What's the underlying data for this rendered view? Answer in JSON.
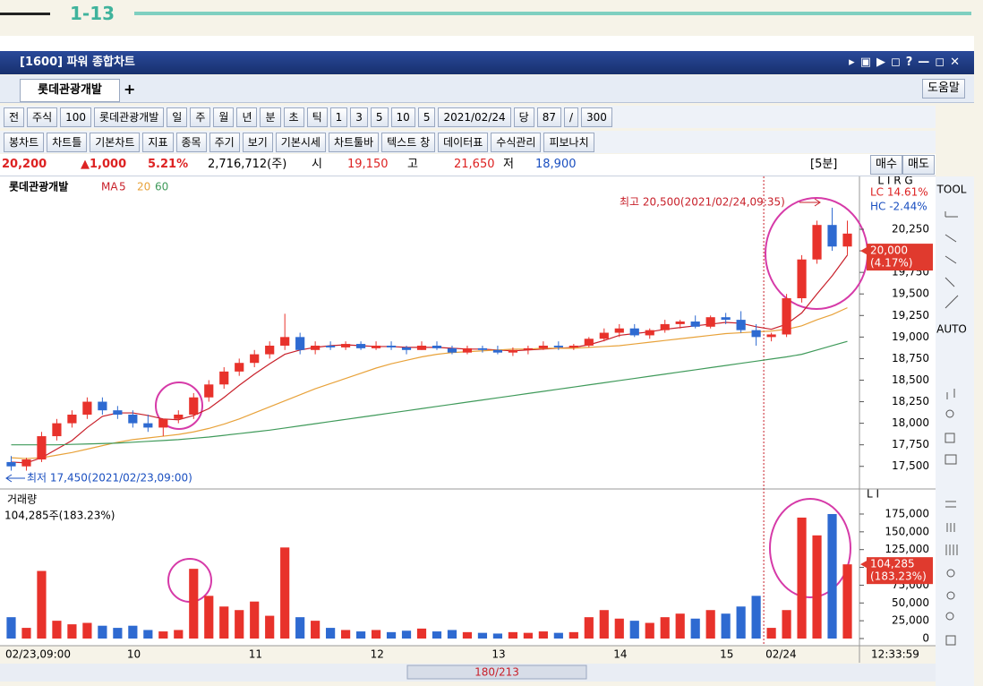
{
  "header": {
    "section": "1-13"
  },
  "window": {
    "title": "[1600] 파워 종합차트",
    "tab": "롯데관광개발",
    "help": "도움말"
  },
  "toolbar": {
    "row1": [
      "전",
      "주식",
      "100",
      "롯데관광개발",
      "일",
      "주",
      "월",
      "년",
      "분",
      "초",
      "틱",
      "1",
      "3",
      "5",
      "10",
      "5",
      "2021/02/24",
      "당",
      "87",
      "/",
      "300"
    ],
    "row2": [
      "봉차트",
      "차트틀",
      "기본차트",
      "지표",
      "종목",
      "주기",
      "보기",
      "기본시세",
      "차트툴바",
      "텍스트 창",
      "데이터표",
      "수식관리",
      "피보나치"
    ]
  },
  "quote": {
    "price": "20,200",
    "change": "▲1,000",
    "rate": "5.21%",
    "volume": "2,716,712(주)",
    "open_label": "시",
    "open": "19,150",
    "high_label": "고",
    "high": "21,650",
    "low_label": "저",
    "low": "18,900",
    "period": "[5분]",
    "buy": "매수",
    "sell": "매도"
  },
  "chart_data": [
    {
      "type": "candlestick",
      "title": "롯데관광개발",
      "ma_label": "MA",
      "panel_tag": "L I R G",
      "up_color": "#e8322b",
      "down_color": "#2e6ad1",
      "open": [
        17550,
        17500,
        17580,
        17850,
        18000,
        18100,
        18250,
        18150,
        18100,
        18000,
        17950,
        18050,
        18100,
        18300,
        18450,
        18600,
        18700,
        18800,
        18900,
        19000,
        18850,
        18900,
        18880,
        18920,
        18870,
        18900,
        18880,
        18850,
        18900,
        18870,
        18820,
        18870,
        18850,
        18820,
        18850,
        18870,
        18900,
        18880,
        18900,
        18980,
        19050,
        19100,
        19020,
        19080,
        19150,
        19180,
        19120,
        19230,
        19200,
        19080,
        19000,
        19030,
        19450,
        19900,
        20300,
        20050
      ],
      "high": [
        17620,
        17600,
        17900,
        18050,
        18150,
        18300,
        18300,
        18200,
        18150,
        18100,
        18050,
        18150,
        18350,
        18500,
        18650,
        18750,
        18850,
        18950,
        19270,
        19050,
        18950,
        18950,
        18950,
        18950,
        18950,
        18950,
        18900,
        18950,
        18950,
        18900,
        18900,
        18900,
        18900,
        18880,
        18900,
        18950,
        18950,
        18920,
        19000,
        19100,
        19150,
        19150,
        19100,
        19200,
        19200,
        19250,
        19250,
        19280,
        19300,
        19150,
        19050,
        19500,
        19950,
        20350,
        20500,
        20350
      ],
      "low": [
        17450,
        17450,
        17550,
        17800,
        17950,
        18050,
        18100,
        18050,
        17950,
        17900,
        17850,
        18000,
        18050,
        18250,
        18400,
        18550,
        18650,
        18750,
        18850,
        18800,
        18800,
        18850,
        18850,
        18850,
        18850,
        18850,
        18800,
        18850,
        18850,
        18800,
        18800,
        18820,
        18800,
        18780,
        18800,
        18850,
        18850,
        18850,
        18880,
        18950,
        19000,
        19000,
        18980,
        19050,
        19100,
        19100,
        19100,
        19150,
        19050,
        18900,
        18950,
        19000,
        19400,
        19850,
        20000,
        19950
      ],
      "close": [
        17500,
        17580,
        17850,
        18000,
        18100,
        18250,
        18150,
        18100,
        18000,
        17950,
        18050,
        18100,
        18300,
        18450,
        18600,
        18700,
        18800,
        18900,
        19000,
        18850,
        18900,
        18880,
        18920,
        18870,
        18900,
        18880,
        18850,
        18900,
        18870,
        18820,
        18870,
        18850,
        18820,
        18850,
        18870,
        18900,
        18880,
        18900,
        18980,
        19050,
        19100,
        19020,
        19080,
        19150,
        19180,
        19120,
        19230,
        19200,
        19080,
        19000,
        19030,
        19450,
        19900,
        20300,
        20050,
        20200
      ],
      "series": [
        {
          "name": "5",
          "color": "#c8202a",
          "values": [
            17550,
            17540,
            17600,
            17700,
            17800,
            17950,
            18080,
            18120,
            18120,
            18090,
            18050,
            18040,
            18090,
            18170,
            18300,
            18440,
            18570,
            18690,
            18800,
            18850,
            18880,
            18900,
            18910,
            18900,
            18890,
            18890,
            18880,
            18880,
            18880,
            18870,
            18860,
            18860,
            18850,
            18840,
            18850,
            18860,
            18870,
            18880,
            18910,
            18960,
            19020,
            19040,
            19060,
            19090,
            19110,
            19130,
            19150,
            19170,
            19160,
            19120,
            19090,
            19150,
            19280,
            19500,
            19710,
            19950
          ]
        },
        {
          "name": "20",
          "color": "#e8a23a",
          "values": [
            17600,
            17590,
            17600,
            17630,
            17660,
            17700,
            17740,
            17780,
            17810,
            17830,
            17850,
            17870,
            17900,
            17940,
            17990,
            18050,
            18120,
            18190,
            18260,
            18330,
            18400,
            18460,
            18520,
            18580,
            18640,
            18690,
            18730,
            18770,
            18800,
            18820,
            18830,
            18840,
            18850,
            18860,
            18860,
            18870,
            18870,
            18870,
            18880,
            18890,
            18900,
            18920,
            18940,
            18960,
            18980,
            19000,
            19020,
            19040,
            19050,
            19060,
            19070,
            19090,
            19130,
            19200,
            19260,
            19340
          ]
        },
        {
          "name": "60",
          "color": "#3f9a5a",
          "values": [
            17750,
            17750,
            17750,
            17750,
            17755,
            17760,
            17765,
            17770,
            17780,
            17790,
            17800,
            17810,
            17825,
            17840,
            17860,
            17880,
            17900,
            17920,
            17945,
            17970,
            17995,
            18020,
            18045,
            18070,
            18095,
            18120,
            18145,
            18170,
            18195,
            18220,
            18245,
            18270,
            18295,
            18320,
            18345,
            18370,
            18395,
            18420,
            18445,
            18470,
            18495,
            18520,
            18545,
            18570,
            18595,
            18620,
            18645,
            18670,
            18695,
            18720,
            18745,
            18770,
            18800,
            18850,
            18900,
            18950
          ]
        }
      ],
      "ylim": [
        17300,
        20780
      ],
      "yticks": [
        {
          "value": 17500,
          "label": "17,500"
        },
        {
          "value": 17750,
          "label": "17,750"
        },
        {
          "value": 18000,
          "label": "18,000"
        },
        {
          "value": 18250,
          "label": "18,250"
        },
        {
          "value": 18500,
          "label": "18,500"
        },
        {
          "value": 18750,
          "label": "18,750"
        },
        {
          "value": 19000,
          "label": "19,000"
        },
        {
          "value": 19250,
          "label": "19,250"
        },
        {
          "value": 19500,
          "label": "19,500"
        },
        {
          "value": 19750,
          "label": "19,750"
        },
        {
          "value": 20000,
          "label": "20,000"
        },
        {
          "value": 20250,
          "label": "20,250"
        }
      ],
      "high_note": "최고 20,500(2021/02/24,09:35)",
      "low_note": "최저 17,450(2021/02/23,09:00)",
      "lc": "LC 14.61%",
      "hc": "HC -2.44%",
      "marker": {
        "value": 20000,
        "label": "20,000",
        "change": "(4.17%)"
      }
    },
    {
      "type": "bar",
      "title": "거래량",
      "subtitle": "104,285주(183.23%)",
      "panel_tag": "L I",
      "categories": [
        "02/23,09:00",
        null,
        null,
        null,
        null,
        null,
        null,
        null,
        "10",
        null,
        null,
        null,
        null,
        null,
        null,
        null,
        "11",
        null,
        null,
        null,
        null,
        null,
        null,
        null,
        "12",
        null,
        null,
        null,
        null,
        null,
        null,
        null,
        "13",
        null,
        null,
        null,
        null,
        null,
        null,
        null,
        "14",
        null,
        null,
        null,
        null,
        null,
        null,
        "15",
        null,
        null,
        "02/24",
        null,
        null,
        null,
        null,
        null
      ],
      "values": [
        30000,
        15000,
        95000,
        25000,
        20000,
        22000,
        18000,
        15000,
        18000,
        12000,
        10000,
        12000,
        98000,
        60000,
        45000,
        40000,
        52000,
        32000,
        128000,
        30000,
        25000,
        15000,
        12000,
        10000,
        12000,
        9000,
        11000,
        14000,
        10000,
        12000,
        9000,
        8000,
        7000,
        9000,
        8000,
        10000,
        8000,
        9000,
        30000,
        40000,
        28000,
        25000,
        22000,
        30000,
        35000,
        28000,
        40000,
        35000,
        45000,
        60000,
        15000,
        40000,
        170000,
        145000,
        175000,
        104285
      ],
      "ylim": [
        0,
        192600
      ],
      "yticks": [
        0,
        {
          "value": 25000,
          "label": "25,000"
        },
        {
          "value": 50000,
          "label": "50,000"
        },
        {
          "value": 75000,
          "label": "75,000"
        },
        {
          "value": 100000,
          "label": "100,000"
        },
        {
          "value": 125000,
          "label": "125,000"
        },
        {
          "value": 150000,
          "label": "150,000"
        },
        {
          "value": 175000,
          "label": "175,000"
        }
      ],
      "marker": {
        "value": 104285,
        "label": "104,285",
        "change": "(183.23%)"
      }
    }
  ],
  "status": {
    "time": "12:33:59",
    "page": "180/213"
  },
  "tools": {
    "top": "TOOL",
    "auto": "AUTO"
  }
}
